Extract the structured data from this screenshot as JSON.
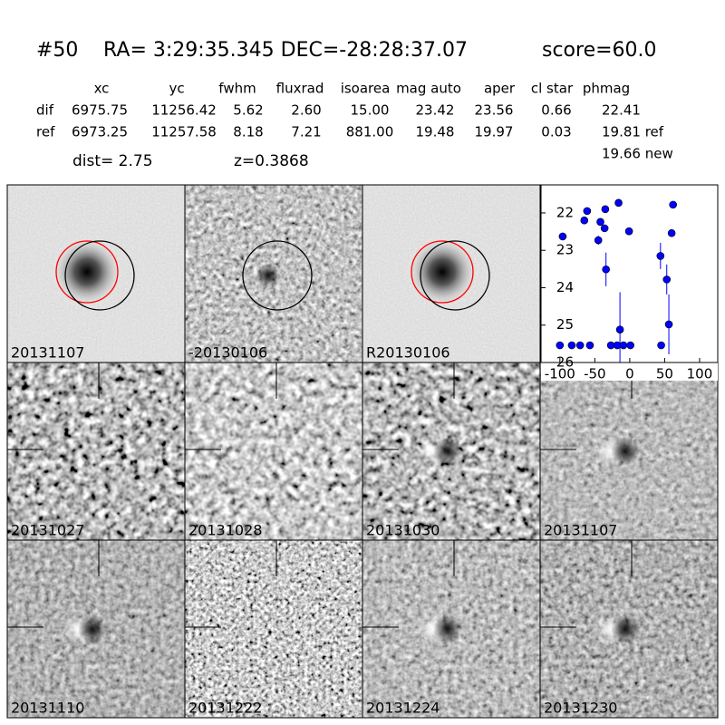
{
  "header": {
    "id": "#50",
    "coords": "RA= 3:29:35.345 DEC=-28:28:37.07",
    "score": "score=60.0"
  },
  "table": {
    "columns": [
      "xc",
      "yc",
      "fwhm",
      "fluxrad",
      "isoarea",
      "mag auto",
      "aper",
      "cl star",
      "phmag"
    ],
    "rows": [
      [
        "dif",
        "6975.75",
        "11256.42",
        "5.62",
        "2.60",
        "15.00",
        "23.42",
        "23.56",
        "0.66",
        "22.41"
      ],
      [
        "ref",
        "6973.25",
        "11257.58",
        "8.18",
        "7.21",
        "881.00",
        "19.48",
        "19.97",
        "0.03",
        "19.81 ref"
      ]
    ],
    "dist": "dist=  2.75",
    "z": "z=0.3868",
    "new_mag": "19.66 new"
  },
  "stamps": [
    {
      "label": "20131107",
      "color": "#000000"
    },
    {
      "label": "-20130106",
      "color": "#000000"
    },
    {
      "label": "R20130106",
      "color": "#000000"
    },
    {
      "label": "20131027",
      "color": "#000000"
    },
    {
      "label": "20131028",
      "color": "#000000"
    },
    {
      "label": "20131030",
      "color": "#000000"
    },
    {
      "label": "20131107",
      "color": "#ff0000"
    },
    {
      "label": "20131110",
      "color": "#000000"
    },
    {
      "label": "20131222",
      "color": "#000000"
    },
    {
      "label": "20131224",
      "color": "#000000"
    },
    {
      "label": "20131230",
      "color": "#000000"
    }
  ],
  "chart_data": {
    "type": "scatter",
    "color": "#0000ff",
    "y_inverted": true,
    "x": [
      -96,
      -100,
      -83,
      -71,
      -57,
      -65,
      -61,
      -45,
      -42,
      -36,
      -35,
      -34,
      -27,
      -16,
      -14,
      -18,
      -9,
      1,
      -1,
      44,
      45,
      53,
      56,
      60,
      62
    ],
    "values": [
      22.63,
      25.54,
      25.54,
      25.54,
      25.54,
      22.2,
      21.95,
      22.73,
      22.24,
      22.41,
      21.9,
      23.51,
      25.54,
      21.73,
      25.12,
      25.54,
      25.54,
      25.54,
      22.49,
      23.15,
      25.54,
      23.78,
      24.98,
      22.54,
      21.78
    ],
    "errors": [
      0.1,
      0.05,
      0.05,
      0.05,
      0.05,
      0.08,
      0.07,
      0.12,
      0.08,
      0.1,
      0.07,
      0.45,
      0.05,
      0.06,
      1.0,
      0.05,
      0.05,
      0.05,
      0.08,
      0.35,
      0.05,
      0.4,
      0.8,
      0.08,
      0.05
    ],
    "xlim": [
      -127,
      126
    ],
    "ylim": [
      21.25,
      26
    ],
    "xticks": [
      -100,
      -50,
      0,
      50,
      100
    ],
    "yticks": [
      22,
      23,
      24,
      25,
      26
    ]
  }
}
